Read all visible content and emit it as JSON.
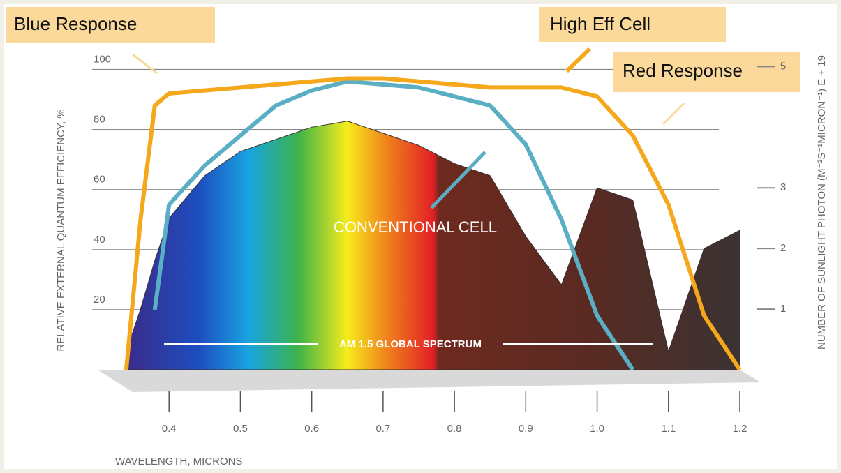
{
  "chart_data": {
    "type": "line",
    "y_label": "RELATIVE EXTERNAL QUANTUM EFFICIENCY, %",
    "y2_label": "NUMBER OF SUNLIGHT PHOTON (M⁻²S⁻¹MICRON⁻¹) E + 19",
    "x_label": "WAVELENGTH, MICRONS",
    "annotations": [
      "Blue Response",
      "Red Response"
    ],
    "x": [
      0.34,
      0.36,
      0.38,
      0.4,
      0.45,
      0.5,
      0.55,
      0.6,
      0.65,
      0.7,
      0.75,
      0.8,
      0.85,
      0.9,
      0.95,
      1.0,
      1.05,
      1.1,
      1.15,
      1.2
    ],
    "series": [
      {
        "name": "AM 1.5 GLOBAL SPECTRUM",
        "kind": "area",
        "axis": "y2",
        "color": "#3a2e2e",
        "values": [
          0.3,
          1.0,
          1.8,
          2.5,
          3.2,
          3.6,
          3.8,
          4.0,
          4.1,
          3.9,
          3.7,
          3.4,
          3.2,
          2.2,
          1.4,
          3.0,
          2.8,
          0.3,
          2.0,
          2.3
        ]
      },
      {
        "name": "CONVENTIONAL CELL",
        "kind": "line",
        "color": "#5aafc4",
        "values": [
          null,
          null,
          20,
          55,
          68,
          78,
          88,
          93,
          96,
          95,
          94,
          91,
          88,
          75,
          50,
          18,
          0,
          null,
          null,
          null
        ]
      },
      {
        "name": "High Eff Cell",
        "kind": "line",
        "color": "#f5a81c",
        "values": [
          0,
          50,
          88,
          92,
          93,
          94,
          95,
          96,
          97,
          97,
          96,
          95,
          94,
          94,
          94,
          91,
          78,
          55,
          18,
          0
        ]
      }
    ],
    "xlim": [
      0.3,
      1.2
    ],
    "xticks": [
      0.4,
      0.5,
      0.6,
      0.7,
      0.8,
      0.9,
      {
        "value": 1,
        "label": "1.0"
      },
      1.1,
      1.2
    ],
    "ylim": [
      0,
      105
    ],
    "yticks": [
      20,
      40,
      60,
      80,
      100
    ],
    "y2lim": [
      0,
      5.2
    ],
    "y2ticks": [
      1,
      2,
      3,
      5
    ],
    "grid": true
  }
}
